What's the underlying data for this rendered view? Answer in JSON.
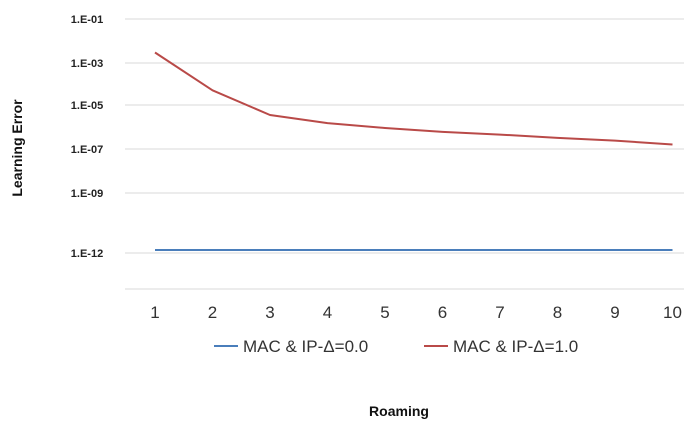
{
  "chart_data": {
    "type": "line",
    "xlabel": "Roaming",
    "ylabel": "Learning Error",
    "x": [
      1,
      2,
      3,
      4,
      5,
      6,
      7,
      8,
      9,
      10
    ],
    "y_scale": "log",
    "y_ticks": [
      "1.E-01",
      "1.E-03",
      "1.E-05",
      "1.E-07",
      "1.E-09",
      "1.E-12"
    ],
    "grid": true,
    "legend_position": "bottom",
    "series": [
      {
        "name": "MAC & IP-Δ=0.0",
        "color": "#4a7ebb",
        "values": [
          1e-12,
          1e-12,
          1e-12,
          1e-12,
          1e-12,
          1e-12,
          1e-12,
          1e-12,
          1e-12,
          1e-12
        ]
      },
      {
        "name": "MAC & IP-Δ=1.0",
        "color": "#b94a48",
        "values": [
          0.003,
          5e-05,
          3.5e-06,
          1.5e-06,
          9e-07,
          6e-07,
          4.5e-07,
          3.2e-07,
          2.4e-07,
          1.6e-07
        ]
      }
    ]
  }
}
